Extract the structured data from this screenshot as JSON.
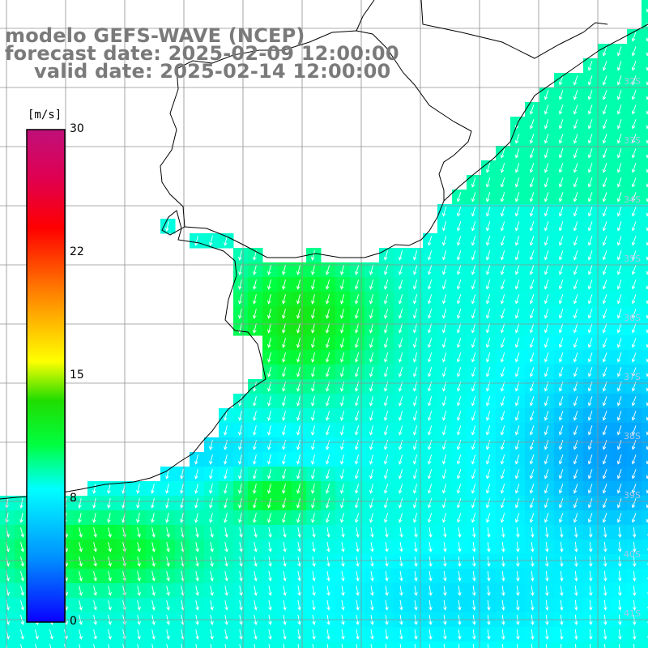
{
  "header": {
    "line1": "modelo GEFS-WAVE (NCEP)",
    "line2": "forecast date: 2025-02-09 12:00:00",
    "line3": "valid date: 2025-02-14 12:00:00"
  },
  "colorbar": {
    "unit": "[m/s]",
    "ticks": [
      "30",
      "22",
      "15",
      "8",
      "0"
    ],
    "tick_values": [
      30,
      22,
      15,
      8,
      0
    ],
    "min": 0,
    "max": 30,
    "colors": [
      "#0a00ff",
      "#0090ff",
      "#00ffff",
      "#00ff40",
      "#20dd00",
      "#ffff00",
      "#ff8000",
      "#ff0000",
      "#e00050",
      "#c0107a"
    ]
  },
  "map": {
    "field": "wind speed",
    "land_color": "#ffffff",
    "grid_color": "#909090",
    "arrow_color": "#ffffff",
    "latitude_labels": [
      "32S",
      "33S",
      "34S",
      "35S",
      "36S",
      "37S",
      "38S",
      "39S",
      "40S",
      "41S"
    ]
  }
}
